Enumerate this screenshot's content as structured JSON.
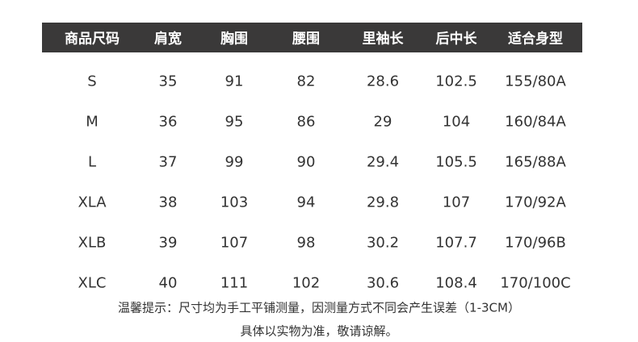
{
  "table": {
    "headers": [
      "商品尺码",
      "肩宽",
      "胸围",
      "腰围",
      "里袖长",
      "后中长",
      "适合身型"
    ],
    "rows": [
      [
        "S",
        "35",
        "91",
        "82",
        "28.6",
        "102.5",
        "155/80A"
      ],
      [
        "M",
        "36",
        "95",
        "86",
        "29",
        "104",
        "160/84A"
      ],
      [
        "L",
        "37",
        "99",
        "90",
        "29.4",
        "105.5",
        "165/88A"
      ],
      [
        "XLA",
        "38",
        "103",
        "94",
        "29.8",
        "107",
        "170/92A"
      ],
      [
        "XLB",
        "39",
        "107",
        "98",
        "30.2",
        "107.7",
        "170/96B"
      ],
      [
        "XLC",
        "40",
        "111",
        "102",
        "30.6",
        "108.4",
        "170/100C"
      ]
    ]
  },
  "notes": {
    "line1": "温馨提示：尺寸均为手工平铺测量，因测量方式不同会产生误差（1-3CM）",
    "line2": "具体以实物为准，敬请谅解。"
  },
  "colors": {
    "header_bg": "#3a3939",
    "header_text": "#ffffff",
    "text": "#333333"
  }
}
